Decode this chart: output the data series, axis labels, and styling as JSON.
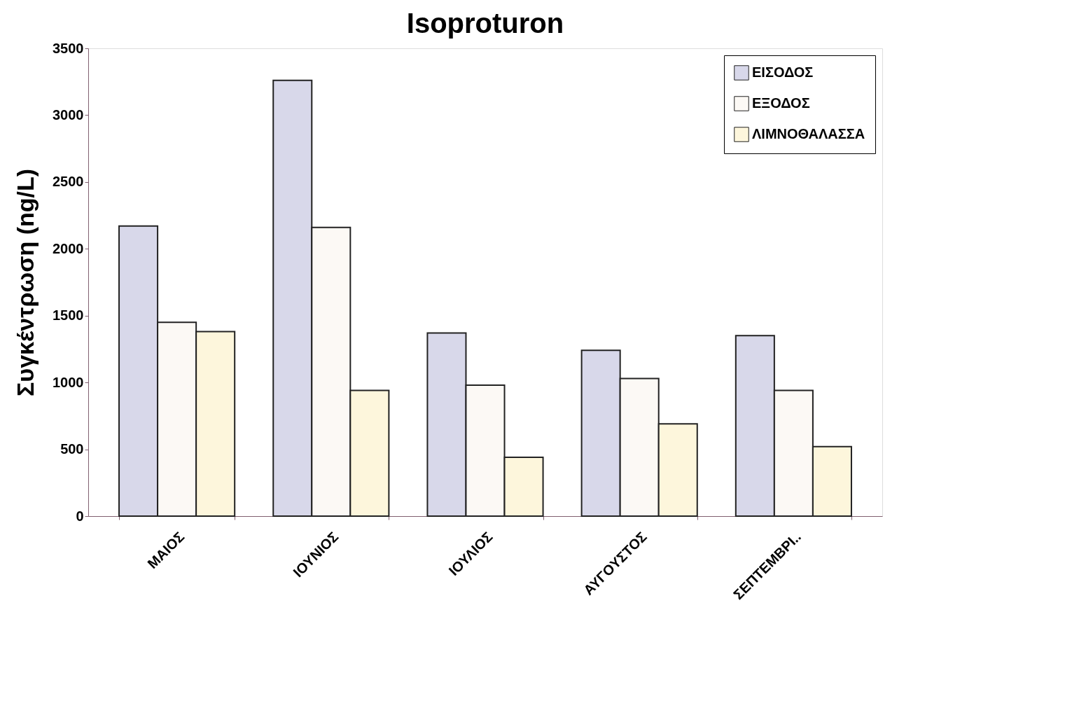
{
  "chart_data": {
    "type": "bar",
    "title": "Isoproturon",
    "ylabel": "Συγκέντρωση (ng/L)",
    "categories": [
      "ΜΑΙΟΣ",
      "ΙΟΥΝΙΟΣ",
      "ΙΟΥΛΙΟΣ",
      "ΑΥΓΟΥΣΤΟΣ",
      "ΣΕΠΤΕΜΒΡΙ.."
    ],
    "series": [
      {
        "name": "ΕΙΣΟΔΟΣ",
        "color": "#d8d8ea",
        "values": [
          2170,
          3260,
          1370,
          1240,
          1350
        ]
      },
      {
        "name": "ΕΞΟΔΟΣ",
        "color": "#fcf9f5",
        "values": [
          1450,
          2160,
          980,
          1030,
          940
        ]
      },
      {
        "name": "ΛΙΜΝΟΘΑΛΑΣΣΑ",
        "color": "#fdf6dc",
        "values": [
          1380,
          940,
          440,
          690,
          520
        ]
      }
    ],
    "ylim": [
      0,
      3500
    ],
    "yticks": [
      0,
      500,
      1000,
      1500,
      2000,
      2500,
      3000,
      3500
    ],
    "grid": false,
    "legend": "top right"
  }
}
